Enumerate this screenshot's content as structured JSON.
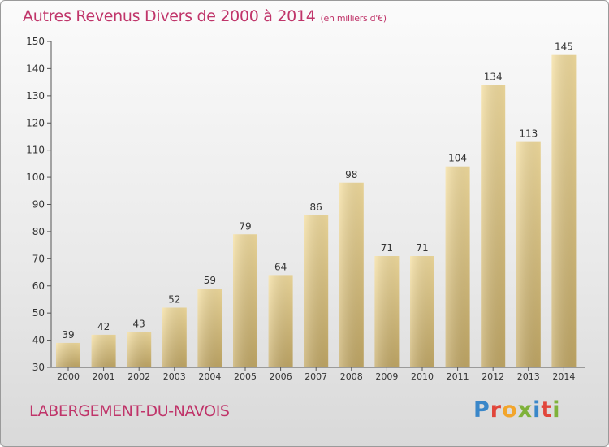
{
  "title": "Autres Revenus Divers de 2000 à 2014",
  "subtitle": "(en milliers d'€)",
  "location": "LABERGEMENT-DU-NAVOIS",
  "brand": "Proxiti",
  "brand_colors": [
    "#3a87c9",
    "#e1463b",
    "#f2a52b",
    "#7fb23a",
    "#3a87c9",
    "#e1463b",
    "#7fb23a"
  ],
  "colors": {
    "title": "#c0356a",
    "bar_light": "#f5dfa0",
    "bar_dark": "#c4aa67"
  },
  "chart_data": {
    "type": "bar",
    "title": "Autres Revenus Divers de 2000 à 2014",
    "subtitle": "(en milliers d'€)",
    "xlabel": "",
    "ylabel": "",
    "categories": [
      "2000",
      "2001",
      "2002",
      "2003",
      "2004",
      "2005",
      "2006",
      "2007",
      "2008",
      "2009",
      "2010",
      "2011",
      "2012",
      "2013",
      "2014"
    ],
    "values": [
      39,
      42,
      43,
      52,
      59,
      79,
      64,
      86,
      98,
      71,
      71,
      104,
      134,
      113,
      145
    ],
    "ylim": [
      30,
      150
    ],
    "yticks": [
      30,
      40,
      50,
      60,
      70,
      80,
      90,
      100,
      110,
      120,
      130,
      140,
      150
    ],
    "grid": false,
    "data_labels": true
  }
}
